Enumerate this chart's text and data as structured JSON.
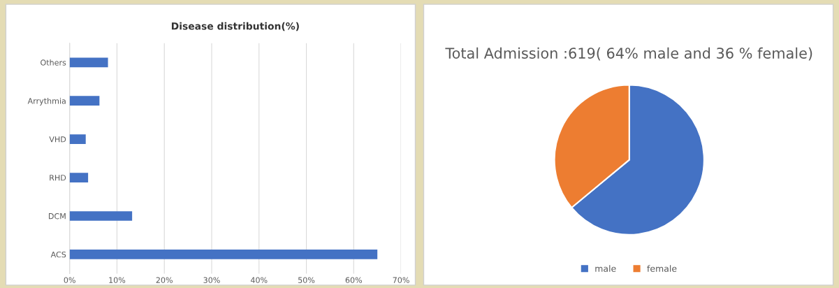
{
  "chart_data": [
    {
      "type": "bar",
      "orientation": "horizontal",
      "title": "Disease distribution(%)",
      "categories": [
        "Others",
        "Arrythmia",
        "VHD",
        "RHD",
        "DCM",
        "ACS"
      ],
      "values": [
        8.1,
        6.3,
        3.4,
        3.9,
        13.2,
        65
      ],
      "color": "#4472c4",
      "xlim": [
        0,
        70
      ],
      "xticks": [
        {
          "value": 0,
          "label": "0%"
        },
        {
          "value": 10,
          "label": "10%"
        },
        {
          "value": 20,
          "label": "20%"
        },
        {
          "value": 30,
          "label": "30%"
        },
        {
          "value": 40,
          "label": "40%"
        },
        {
          "value": 50,
          "label": "50%"
        },
        {
          "value": 60,
          "label": "60%"
        },
        {
          "value": 70,
          "label": "70%"
        }
      ],
      "grid": "x",
      "legend": false
    },
    {
      "type": "pie",
      "title": "Total Admission :619( 64% male and 36 % female)",
      "categories": [
        "male",
        "female"
      ],
      "values": [
        64,
        36
      ],
      "colors": [
        "#4472c4",
        "#ed7d31"
      ],
      "legend": "bottom"
    }
  ]
}
